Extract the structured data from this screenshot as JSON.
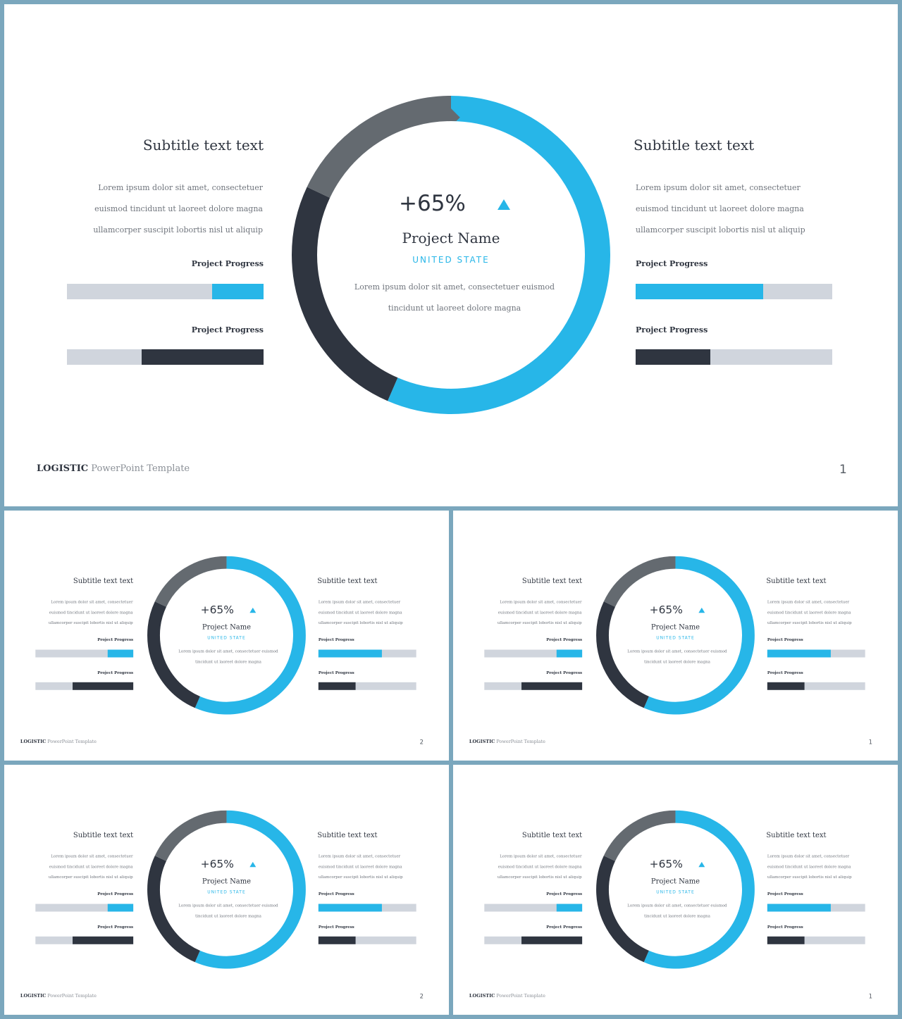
{
  "colors": {
    "accent": "#27b6e8",
    "dark": "#2f3540",
    "gray": "#646a70",
    "track": "#d0d5dd"
  },
  "shared": {
    "subtitle": "Subtitle text text",
    "body_text": "Lorem ipsum dolor sit amet, consectetuer euismod tincidunt ut laoreet dolore magna ullamcorper suscipit lobortis nisl ut aliquip",
    "progress_label": "Project Progress",
    "percent": "+65%",
    "trend_icon": "triangle-up-icon",
    "project_name": "Project Name",
    "country": "UNITED STATE",
    "center_text": "Lorem ipsum dolor sit amet, consectetuer euismod tincidunt ut laoreet dolore magna",
    "footer_brand": "LOGISTIC",
    "footer_suffix": "PowerPoint Template"
  },
  "progress": {
    "left_1": {
      "value": 0.26,
      "color": "#27b6e8"
    },
    "left_2": {
      "value": 0.62,
      "color": "#2f3540"
    },
    "right_1": {
      "value": 0.65,
      "color": "#27b6e8"
    },
    "right_2": {
      "value": 0.38,
      "color": "#2f3540"
    }
  },
  "ring_segments": [
    {
      "name": "blue",
      "fraction": 0.565,
      "color": "#27b6e8"
    },
    {
      "name": "dark",
      "fraction": 0.255,
      "color": "#2f3540"
    },
    {
      "name": "gray",
      "fraction": 0.18,
      "color": "#646a70"
    }
  ],
  "slides": [
    {
      "page": "1"
    },
    {
      "page": "2"
    },
    {
      "page": "1"
    },
    {
      "page": "2"
    },
    {
      "page": "1"
    }
  ]
}
